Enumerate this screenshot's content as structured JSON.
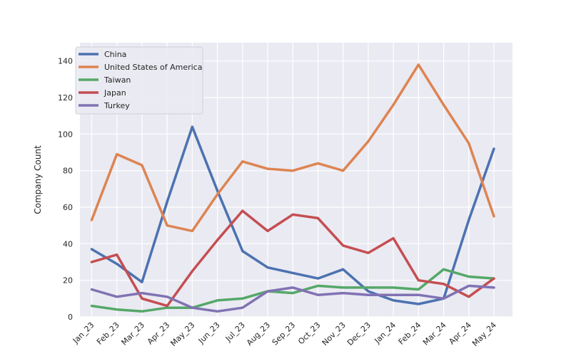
{
  "chart_data": {
    "type": "line",
    "title": "",
    "xlabel": "",
    "ylabel": "Company Count",
    "ylim": [
      0,
      150
    ],
    "yticks": [
      0,
      20,
      40,
      60,
      80,
      100,
      120,
      140
    ],
    "grid": true,
    "legend_position": "top-left",
    "categories": [
      "Jan_23",
      "Feb_23",
      "Mar_23",
      "Apr_23",
      "May_23",
      "Jun_23",
      "Jul_23",
      "Aug_23",
      "Sep_23",
      "Oct_23",
      "Nov_23",
      "Dec_23",
      "Jan_24",
      "Feb_24",
      "Mar_24",
      "Apr_24",
      "May_24"
    ],
    "series": [
      {
        "name": "China",
        "color": "#4c72b0",
        "values": [
          37,
          29,
          19,
          63,
          104,
          69,
          36,
          27,
          24,
          21,
          26,
          14,
          9,
          7,
          10,
          53,
          92
        ]
      },
      {
        "name": "United States of America",
        "color": "#dd8452",
        "values": [
          53,
          89,
          83,
          50,
          47,
          67,
          85,
          81,
          80,
          84,
          80,
          96,
          116,
          138,
          116,
          95,
          55
        ]
      },
      {
        "name": "Taiwan",
        "color": "#55a868",
        "values": [
          6,
          4,
          3,
          5,
          5,
          9,
          10,
          14,
          13,
          17,
          16,
          16,
          16,
          15,
          26,
          22,
          21
        ]
      },
      {
        "name": "Japan",
        "color": "#c44e52",
        "values": [
          30,
          34,
          10,
          6,
          25,
          42,
          58,
          47,
          56,
          54,
          39,
          35,
          43,
          20,
          18,
          11,
          21
        ]
      },
      {
        "name": "Turkey",
        "color": "#8172b3",
        "values": [
          15,
          11,
          13,
          11,
          5,
          3,
          5,
          14,
          16,
          12,
          13,
          12,
          12,
          12,
          10,
          17,
          16
        ]
      }
    ]
  }
}
